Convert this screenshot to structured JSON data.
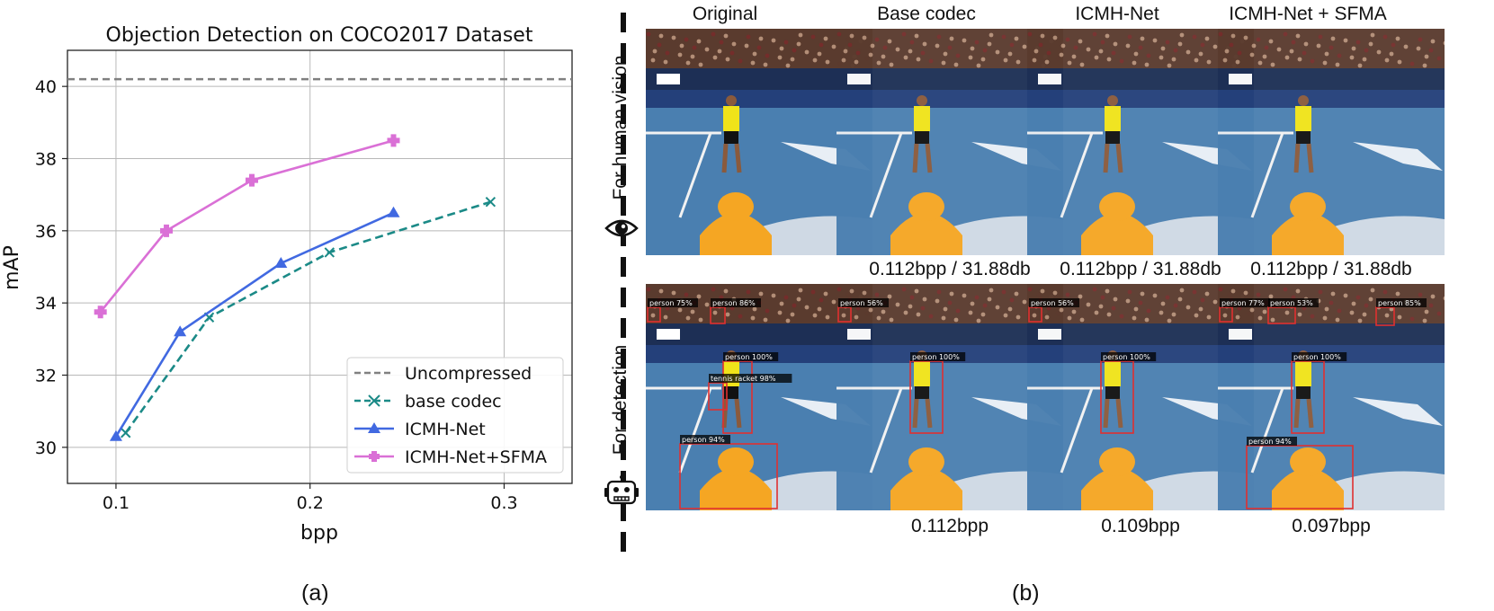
{
  "chart_data": {
    "type": "line",
    "title": "Objection Detection on COCO2017 Dataset",
    "xlabel": "bpp",
    "ylabel": "mAP",
    "xlim": [
      0.075,
      0.335
    ],
    "ylim": [
      29.0,
      41.0
    ],
    "xticks": [
      0.1,
      0.2,
      0.3
    ],
    "xtick_labels": [
      "0.1",
      "0.2",
      "0.3"
    ],
    "yticks": [
      30,
      32,
      34,
      36,
      38,
      40
    ],
    "ytick_labels": [
      "30",
      "32",
      "34",
      "36",
      "38",
      "40"
    ],
    "grid": true,
    "legend_position": "bottom-right",
    "series": [
      {
        "name": "Uncompressed",
        "style": "dashed",
        "marker": "none",
        "color": "#808080",
        "y_constant": 40.2
      },
      {
        "name": "base codec",
        "style": "dashed",
        "marker": "x",
        "color": "#1b8a87",
        "x": [
          0.105,
          0.148,
          0.21,
          0.293
        ],
        "y": [
          30.4,
          33.6,
          35.4,
          36.8
        ]
      },
      {
        "name": "ICMH-Net",
        "style": "solid",
        "marker": "triangle",
        "color": "#4169e1",
        "x": [
          0.1,
          0.133,
          0.185,
          0.243
        ],
        "y": [
          30.3,
          33.2,
          35.1,
          36.5
        ]
      },
      {
        "name": "ICMH-Net+SFMA",
        "style": "solid",
        "marker": "plus",
        "color": "#da70d6",
        "x": [
          0.092,
          0.126,
          0.17,
          0.243
        ],
        "y": [
          33.75,
          36.0,
          37.4,
          38.5
        ]
      }
    ]
  },
  "labels": {
    "panel_a": "(a)",
    "panel_b": "(b)"
  },
  "grid": {
    "columns": [
      "Original",
      "Base codec",
      "ICMH-Net",
      "ICMH-Net + SFMA"
    ],
    "rows": [
      "For human vision",
      "For detection"
    ],
    "human_captions": [
      "",
      "0.112bpp / 31.88db",
      "0.112bpp / 31.88db",
      "0.112bpp / 31.88db"
    ],
    "detection_captions": [
      "",
      "0.112bpp",
      "0.109bpp",
      "0.097bpp"
    ],
    "detections": [
      [
        "person 75%",
        "person 86%",
        "person 100%",
        "tennis racket 98%",
        "person 94%"
      ],
      [
        "person 56%",
        "person 100%"
      ],
      [
        "person 56%",
        "person 100%"
      ],
      [
        "person 77%",
        "person 53%",
        "person 85%",
        "person 100%",
        "person 94%"
      ]
    ]
  },
  "colors": {
    "court": "#3f6e9e",
    "crowd": "#5a3b2e",
    "shirt": "#f0e31a",
    "umpire": "#f5a623",
    "box": "#e03030"
  }
}
